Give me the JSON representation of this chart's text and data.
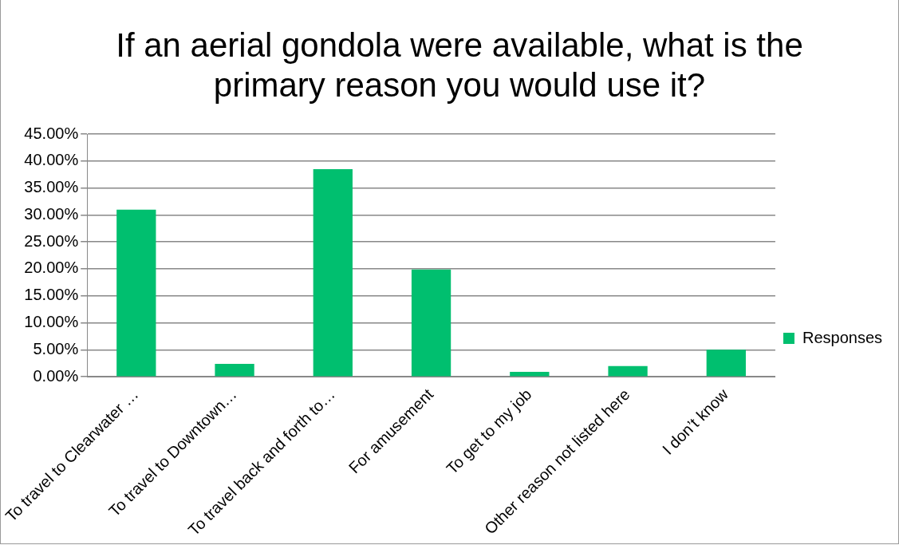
{
  "chart_data": {
    "type": "bar",
    "title": "If an aerial gondola were available, what is the primary reason you would use it?",
    "categories": [
      "To travel to Clearwater …",
      "To travel to Downtown…",
      "To travel back and forth to…",
      "For amusement",
      "To get to my job",
      "Other reason not listed here",
      "I don’t know"
    ],
    "series": [
      {
        "name": "Responses",
        "color": "#00bf6f",
        "values": [
          31.0,
          2.4,
          38.5,
          19.9,
          0.9,
          2.0,
          5.0
        ]
      }
    ],
    "ylim": [
      0,
      45
    ],
    "yticks": [
      {
        "value": 0,
        "label": "0.00%"
      },
      {
        "value": 5,
        "label": "5.00%"
      },
      {
        "value": 10,
        "label": "10.00%"
      },
      {
        "value": 15,
        "label": "15.00%"
      },
      {
        "value": 20,
        "label": "20.00%"
      },
      {
        "value": 25,
        "label": "25.00%"
      },
      {
        "value": 30,
        "label": "30.00%"
      },
      {
        "value": 35,
        "label": "35.00%"
      },
      {
        "value": 40,
        "label": "40.00%"
      },
      {
        "value": 45,
        "label": "45.00%"
      }
    ],
    "grid": "y",
    "legend": "right"
  }
}
